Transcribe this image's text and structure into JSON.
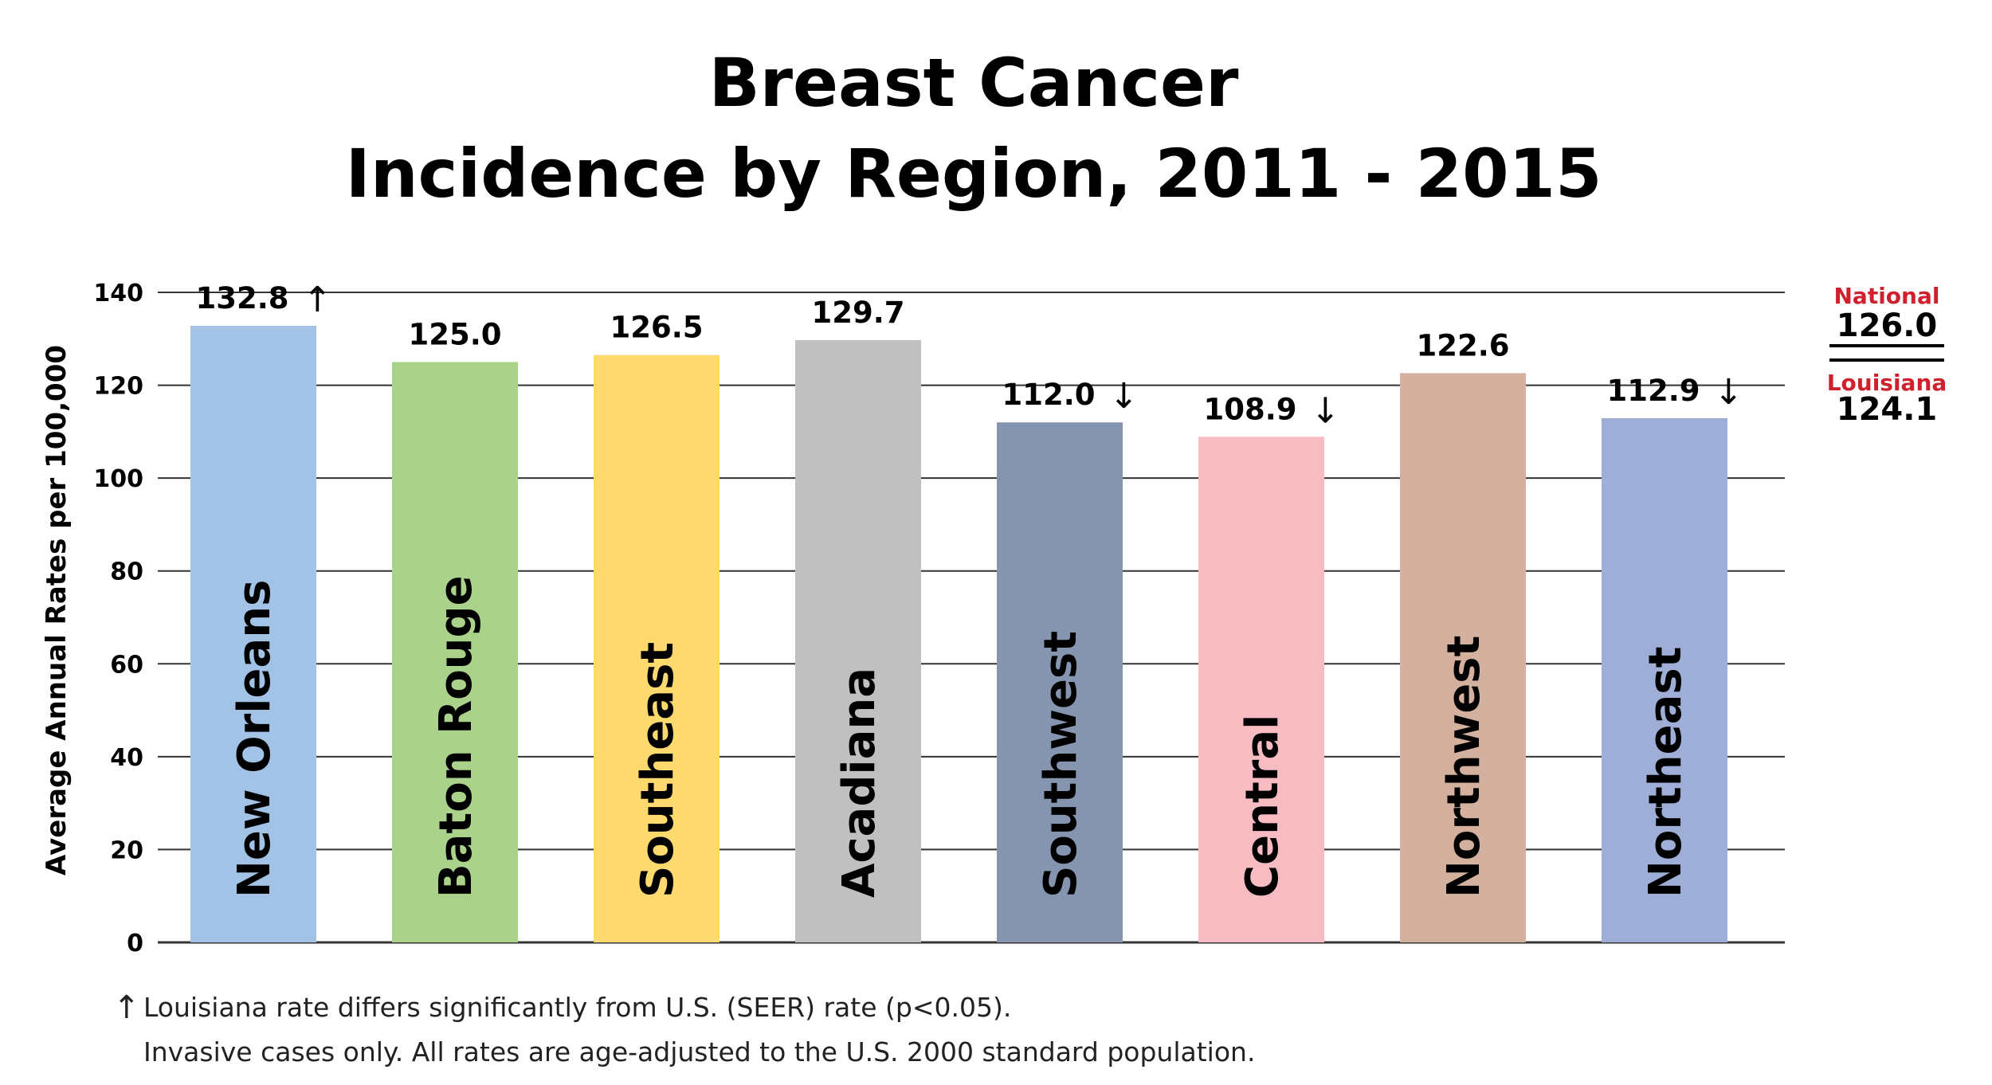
{
  "chart_data": {
    "type": "bar",
    "title": [
      "Breast Cancer",
      "Incidence by Region, 2011 - 2015"
    ],
    "xlabel": "",
    "ylabel": "Average Annual Rates per 100,000",
    "ylim": [
      0,
      140
    ],
    "yticks": [
      0,
      20,
      40,
      60,
      80,
      100,
      120,
      140
    ],
    "grid": true,
    "categories": [
      "New Orleans",
      "Baton Rouge",
      "Southeast",
      "Acadiana",
      "Southwest",
      "Central",
      "Northwest",
      "Northeast"
    ],
    "values": [
      132.8,
      125.0,
      126.5,
      129.7,
      112.0,
      108.9,
      122.6,
      112.9
    ],
    "value_labels": [
      "132.8",
      "125.0",
      "126.5",
      "129.7",
      "112.0",
      "108.9",
      "122.6",
      "112.9"
    ],
    "significance": [
      "up",
      "",
      "",
      "",
      "down",
      "down",
      "",
      "down"
    ],
    "colors": [
      "#a2c3e5",
      "#aad28a",
      "#fdd96e",
      "#c0c0c0",
      "#8595b0",
      "#f7bcc1",
      "#d4b09e",
      "#9eaed7"
    ],
    "reference_lines": [
      {
        "name": "National",
        "value": 126.0,
        "value_label": "126.0",
        "color": "#d0202e"
      },
      {
        "name": "Louisiana",
        "value": 124.1,
        "value_label": "124.1",
        "color": "#d0202e"
      }
    ],
    "footnotes": [
      "Louisiana rate differs significantly from U.S. (SEER) rate (p<0.05).",
      "Invasive cases only. All rates are age-adjusted to the U.S. 2000 standard population."
    ]
  },
  "symbols": {
    "up_arrow": "↑",
    "down_arrow": "↓"
  }
}
